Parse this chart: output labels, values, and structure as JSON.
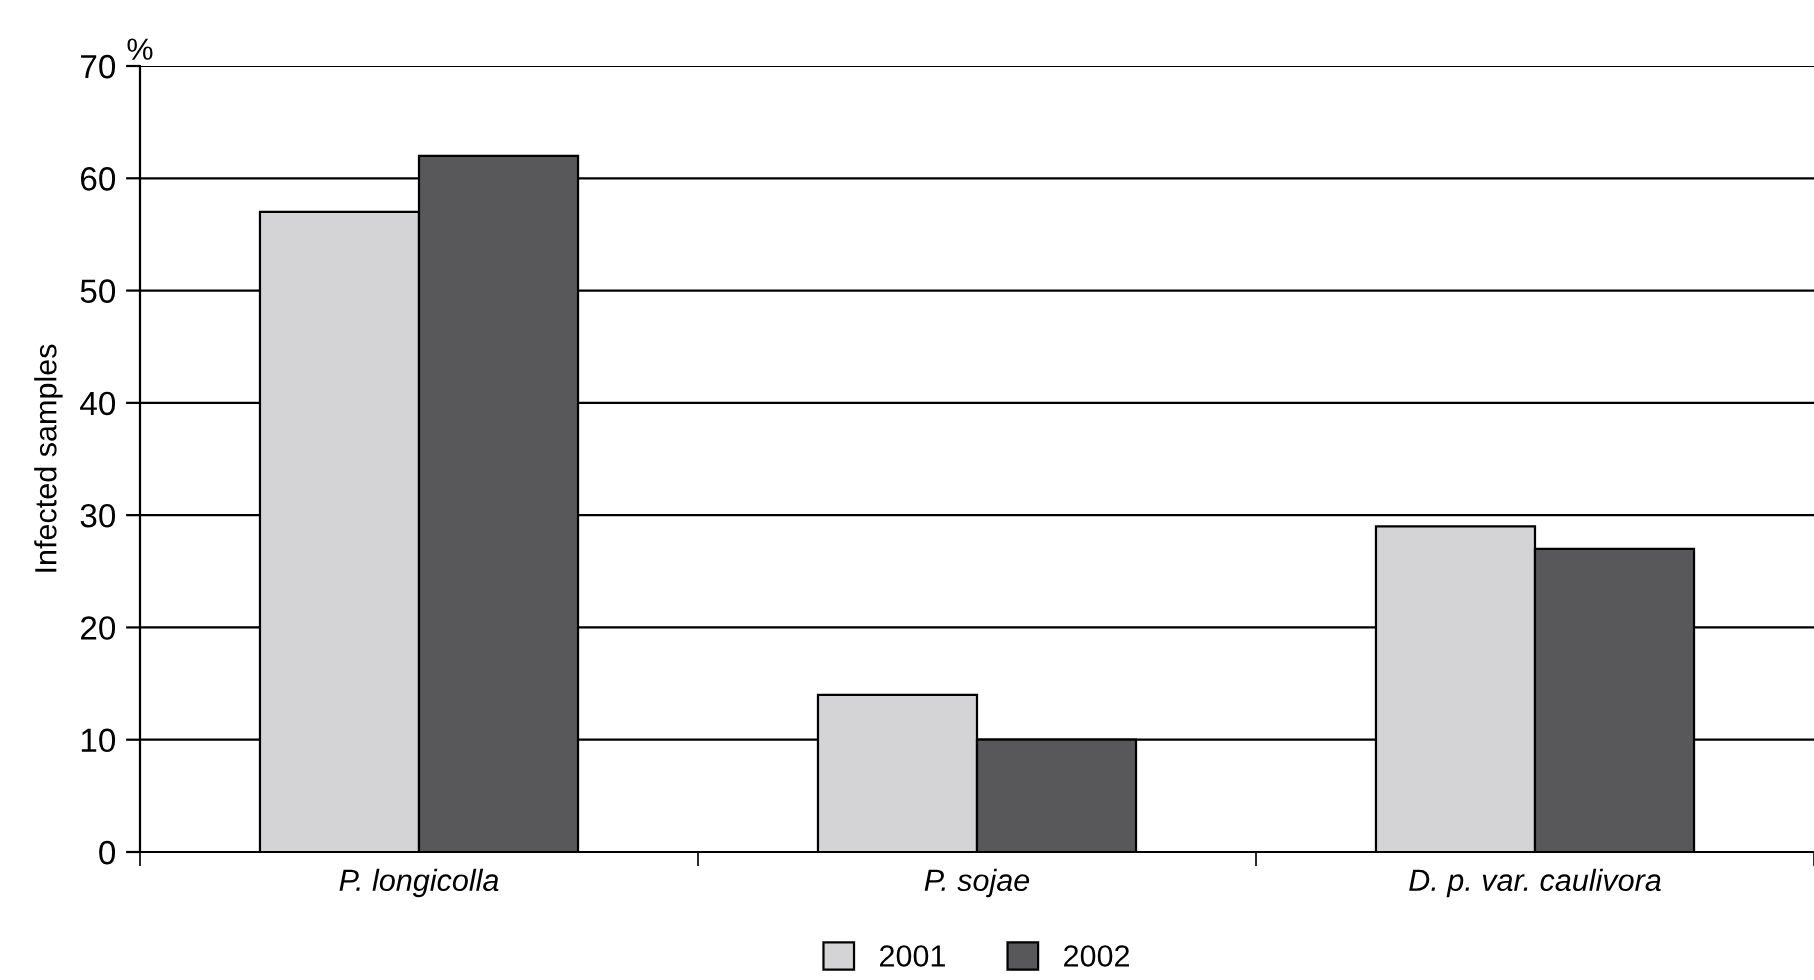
{
  "chart_data": {
    "type": "bar",
    "ylabel": "Infected samples",
    "annotations": [
      "%"
    ],
    "categories": [
      "P. longicolla",
      "P. sojae",
      "D. p. var. caulivora"
    ],
    "series": [
      {
        "name": "2001",
        "color": "#d4d4d6",
        "values": [
          57,
          14,
          29
        ]
      },
      {
        "name": "2002",
        "color": "#58585a",
        "values": [
          62,
          10,
          27
        ]
      }
    ],
    "ylim": [
      0,
      70
    ],
    "yticks": [
      0,
      10,
      20,
      30,
      40,
      50,
      60,
      70
    ],
    "grid": "y",
    "legend": "bottom"
  }
}
